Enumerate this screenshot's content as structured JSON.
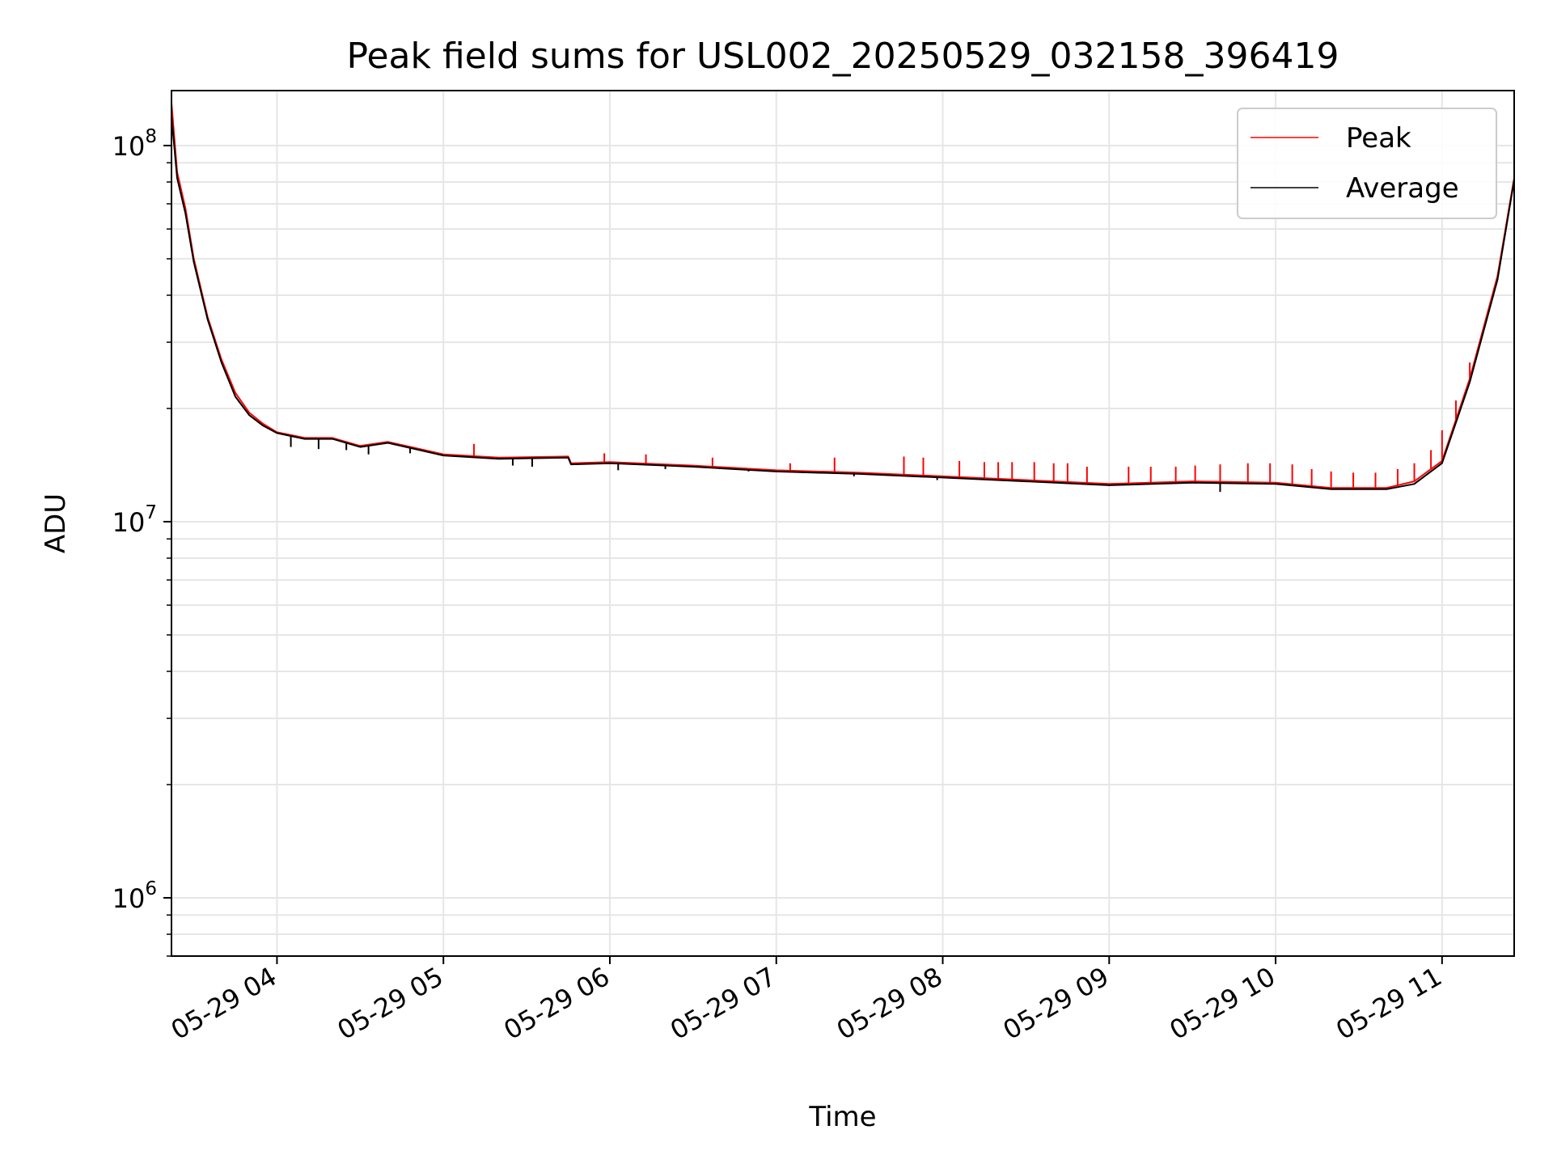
{
  "chart_data": {
    "type": "line",
    "title": "Peak field sums for USL002_20250529_032158_396419",
    "xlabel": "Time",
    "ylabel": "ADU",
    "y_scale": "log",
    "ylim": [
      700000,
      140000000
    ],
    "xlim": [
      "2025-05-29 03:21:58",
      "2025-05-29 11:26:00"
    ],
    "grid": true,
    "legend_position": "top-right",
    "x_ticks": [
      "05-29 04",
      "05-29 05",
      "05-29 06",
      "05-29 07",
      "05-29 08",
      "05-29 09",
      "05-29 10",
      "05-29 11"
    ],
    "x_tick_times": [
      "2025-05-29 04:00",
      "2025-05-29 05:00",
      "2025-05-29 06:00",
      "2025-05-29 07:00",
      "2025-05-29 08:00",
      "2025-05-29 09:00",
      "2025-05-29 10:00",
      "2025-05-29 11:00"
    ],
    "y_ticks": [
      {
        "value": 1000000,
        "base": "10",
        "exp": "6"
      },
      {
        "value": 10000000,
        "base": "10",
        "exp": "7"
      },
      {
        "value": 100000000,
        "base": "10",
        "exp": "8"
      }
    ],
    "series": [
      {
        "name": "Peak",
        "color": "#ff0000",
        "x": [
          "2025-05-29 03:21:58",
          "2025-05-29 03:24",
          "2025-05-29 03:27",
          "2025-05-29 03:30",
          "2025-05-29 03:35",
          "2025-05-29 03:40",
          "2025-05-29 03:45",
          "2025-05-29 03:50",
          "2025-05-29 03:55",
          "2025-05-29 04:00",
          "2025-05-29 04:10",
          "2025-05-29 04:20",
          "2025-05-29 04:30",
          "2025-05-29 04:40",
          "2025-05-29 05:00",
          "2025-05-29 05:20",
          "2025-05-29 05:45",
          "2025-05-29 05:46",
          "2025-05-29 06:00",
          "2025-05-29 06:30",
          "2025-05-29 07:00",
          "2025-05-29 07:30",
          "2025-05-29 08:00",
          "2025-05-29 08:30",
          "2025-05-29 09:00",
          "2025-05-29 09:30",
          "2025-05-29 10:00",
          "2025-05-29 10:20",
          "2025-05-29 10:40",
          "2025-05-29 10:50",
          "2025-05-29 11:00",
          "2025-05-29 11:10",
          "2025-05-29 11:20",
          "2025-05-29 11:26"
        ],
        "y": [
          130000000,
          85000000,
          68000000,
          50000000,
          35000000,
          27000000,
          22000000,
          19500000,
          18200000,
          17300000,
          16700000,
          16700000,
          15900000,
          16300000,
          15100000,
          14800000,
          14900000,
          14300000,
          14400000,
          14100000,
          13700000,
          13500000,
          13200000,
          12900000,
          12600000,
          12800000,
          12700000,
          12300000,
          12300000,
          12800000,
          14500000,
          24000000,
          45000000,
          82000000
        ],
        "spikes": [
          {
            "x": "2025-05-29 05:11",
            "y": 16100000
          },
          {
            "x": "2025-05-29 05:58",
            "y": 15200000
          },
          {
            "x": "2025-05-29 06:13",
            "y": 15100000
          },
          {
            "x": "2025-05-29 06:37",
            "y": 14800000
          },
          {
            "x": "2025-05-29 07:05",
            "y": 14300000
          },
          {
            "x": "2025-05-29 07:21",
            "y": 14800000
          },
          {
            "x": "2025-05-29 07:46",
            "y": 14900000
          },
          {
            "x": "2025-05-29 07:53",
            "y": 14800000
          },
          {
            "x": "2025-05-29 08:06",
            "y": 14500000
          },
          {
            "x": "2025-05-29 08:15",
            "y": 14400000
          },
          {
            "x": "2025-05-29 08:20",
            "y": 14400000
          },
          {
            "x": "2025-05-29 08:25",
            "y": 14400000
          },
          {
            "x": "2025-05-29 08:33",
            "y": 14400000
          },
          {
            "x": "2025-05-29 08:40",
            "y": 14300000
          },
          {
            "x": "2025-05-29 08:45",
            "y": 14300000
          },
          {
            "x": "2025-05-29 08:52",
            "y": 14000000
          },
          {
            "x": "2025-05-29 09:07",
            "y": 14000000
          },
          {
            "x": "2025-05-29 09:15",
            "y": 14000000
          },
          {
            "x": "2025-05-29 09:24",
            "y": 14000000
          },
          {
            "x": "2025-05-29 09:31",
            "y": 14100000
          },
          {
            "x": "2025-05-29 09:40",
            "y": 14200000
          },
          {
            "x": "2025-05-29 09:50",
            "y": 14300000
          },
          {
            "x": "2025-05-29 09:58",
            "y": 14300000
          },
          {
            "x": "2025-05-29 10:06",
            "y": 14200000
          },
          {
            "x": "2025-05-29 10:13",
            "y": 13800000
          },
          {
            "x": "2025-05-29 10:20",
            "y": 13600000
          },
          {
            "x": "2025-05-29 10:28",
            "y": 13500000
          },
          {
            "x": "2025-05-29 10:36",
            "y": 13500000
          },
          {
            "x": "2025-05-29 10:44",
            "y": 13800000
          },
          {
            "x": "2025-05-29 10:50",
            "y": 14300000
          },
          {
            "x": "2025-05-29 10:56",
            "y": 15500000
          },
          {
            "x": "2025-05-29 11:00",
            "y": 17500000
          },
          {
            "x": "2025-05-29 11:05",
            "y": 21000000
          },
          {
            "x": "2025-05-29 11:10",
            "y": 26500000
          }
        ]
      },
      {
        "name": "Average",
        "color": "#000000",
        "x": [
          "2025-05-29 03:21:58",
          "2025-05-29 03:24",
          "2025-05-29 03:27",
          "2025-05-29 03:30",
          "2025-05-29 03:35",
          "2025-05-29 03:40",
          "2025-05-29 03:45",
          "2025-05-29 03:50",
          "2025-05-29 03:55",
          "2025-05-29 04:00",
          "2025-05-29 04:10",
          "2025-05-29 04:20",
          "2025-05-29 04:30",
          "2025-05-29 04:40",
          "2025-05-29 05:00",
          "2025-05-29 05:20",
          "2025-05-29 05:45",
          "2025-05-29 05:46",
          "2025-05-29 06:00",
          "2025-05-29 06:30",
          "2025-05-29 07:00",
          "2025-05-29 07:30",
          "2025-05-29 08:00",
          "2025-05-29 08:30",
          "2025-05-29 09:00",
          "2025-05-29 09:30",
          "2025-05-29 10:00",
          "2025-05-29 10:20",
          "2025-05-29 10:40",
          "2025-05-29 10:50",
          "2025-05-29 11:00",
          "2025-05-29 11:10",
          "2025-05-29 11:20",
          "2025-05-29 11:26"
        ],
        "y": [
          120000000,
          82000000,
          66000000,
          49000000,
          34500000,
          26500000,
          21500000,
          19200000,
          18000000,
          17200000,
          16600000,
          16600000,
          15800000,
          16200000,
          15000000,
          14700000,
          14800000,
          14200000,
          14300000,
          14000000,
          13600000,
          13400000,
          13100000,
          12800000,
          12500000,
          12700000,
          12600000,
          12200000,
          12200000,
          12600000,
          14300000,
          23500000,
          44000000,
          81000000
        ],
        "dips": [
          {
            "x": "2025-05-29 04:05",
            "y": 15800000
          },
          {
            "x": "2025-05-29 04:15",
            "y": 15600000
          },
          {
            "x": "2025-05-29 04:25",
            "y": 15500000
          },
          {
            "x": "2025-05-29 04:33",
            "y": 15100000
          },
          {
            "x": "2025-05-29 04:48",
            "y": 15200000
          },
          {
            "x": "2025-05-29 05:25",
            "y": 14100000
          },
          {
            "x": "2025-05-29 05:32",
            "y": 14000000
          },
          {
            "x": "2025-05-29 06:03",
            "y": 13700000
          },
          {
            "x": "2025-05-29 06:20",
            "y": 13800000
          },
          {
            "x": "2025-05-29 06:50",
            "y": 13600000
          },
          {
            "x": "2025-05-29 07:28",
            "y": 13200000
          },
          {
            "x": "2025-05-29 07:58",
            "y": 12900000
          },
          {
            "x": "2025-05-29 09:40",
            "y": 12000000
          }
        ]
      }
    ]
  }
}
